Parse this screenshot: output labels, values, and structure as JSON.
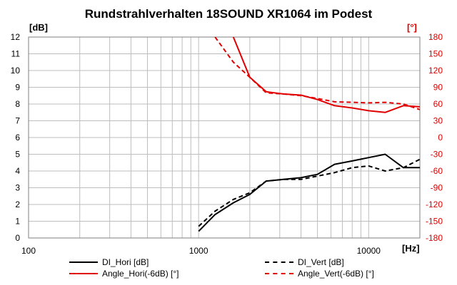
{
  "title": "Rundstrahlverhalten  18SOUND XR1064 im Podest",
  "colors": {
    "black": "#000000",
    "red": "#e00000",
    "grid": "#bdbdbd"
  },
  "chart_data": {
    "type": "line",
    "title": "Rundstrahlverhalten  18SOUND XR1064 im Podest",
    "x_unit": "[Hz]",
    "x_scale": "log",
    "xlim": [
      100,
      20000
    ],
    "x_ticks": [
      "100",
      "1000",
      "10000"
    ],
    "y_left": {
      "unit": "[dB]",
      "lim": [
        0,
        12
      ],
      "ticks": [
        "0",
        "1",
        "2",
        "3",
        "4",
        "5",
        "6",
        "7",
        "8",
        "9",
        "10",
        "11",
        "12"
      ]
    },
    "y_right": {
      "unit": "[°]",
      "lim": [
        -180,
        180
      ],
      "ticks": [
        "-180",
        "-150",
        "-120",
        "-90",
        "-60",
        "-30",
        "0",
        "30",
        "60",
        "90",
        "120",
        "150",
        "180"
      ]
    },
    "grid": true,
    "legend_position": "bottom",
    "series": [
      {
        "name": "DI_Hori [dB]",
        "axis": "left",
        "color": "#000000",
        "dash": false,
        "x": [
          1000,
          1250,
          1600,
          2000,
          2500,
          3150,
          4000,
          5000,
          6300,
          8000,
          10000,
          12500,
          16000,
          20000
        ],
        "y": [
          0.4,
          1.4,
          2.1,
          2.6,
          3.4,
          3.5,
          3.6,
          3.8,
          4.4,
          4.6,
          4.8,
          5.0,
          4.2,
          4.2
        ]
      },
      {
        "name": "DI_Vert [dB]",
        "axis": "left",
        "color": "#000000",
        "dash": true,
        "x": [
          1000,
          1250,
          1600,
          2000,
          2500,
          3150,
          4000,
          5000,
          6300,
          8000,
          10000,
          12500,
          16000,
          20000
        ],
        "y": [
          0.7,
          1.6,
          2.3,
          2.7,
          3.4,
          3.5,
          3.5,
          3.7,
          3.9,
          4.2,
          4.3,
          4.0,
          4.2,
          4.7
        ]
      },
      {
        "name": "Angle_Hori(-6dB) [°]",
        "axis": "right",
        "color": "#e00000",
        "dash": false,
        "x": [
          1600,
          2000,
          2500,
          3150,
          4000,
          5000,
          6300,
          8000,
          10000,
          12500,
          16000,
          20000
        ],
        "y": [
          180,
          108,
          82,
          78,
          76,
          68,
          57,
          53,
          48,
          45,
          57,
          55
        ]
      },
      {
        "name": "Angle_Vert(-6dB) [°]",
        "axis": "right",
        "color": "#e00000",
        "dash": true,
        "x": [
          1250,
          1600,
          2000,
          2500,
          3150,
          4000,
          5000,
          6300,
          8000,
          10000,
          12500,
          16000,
          20000
        ],
        "y": [
          180,
          135,
          108,
          80,
          78,
          75,
          70,
          64,
          63,
          62,
          63,
          60,
          50
        ]
      }
    ]
  }
}
